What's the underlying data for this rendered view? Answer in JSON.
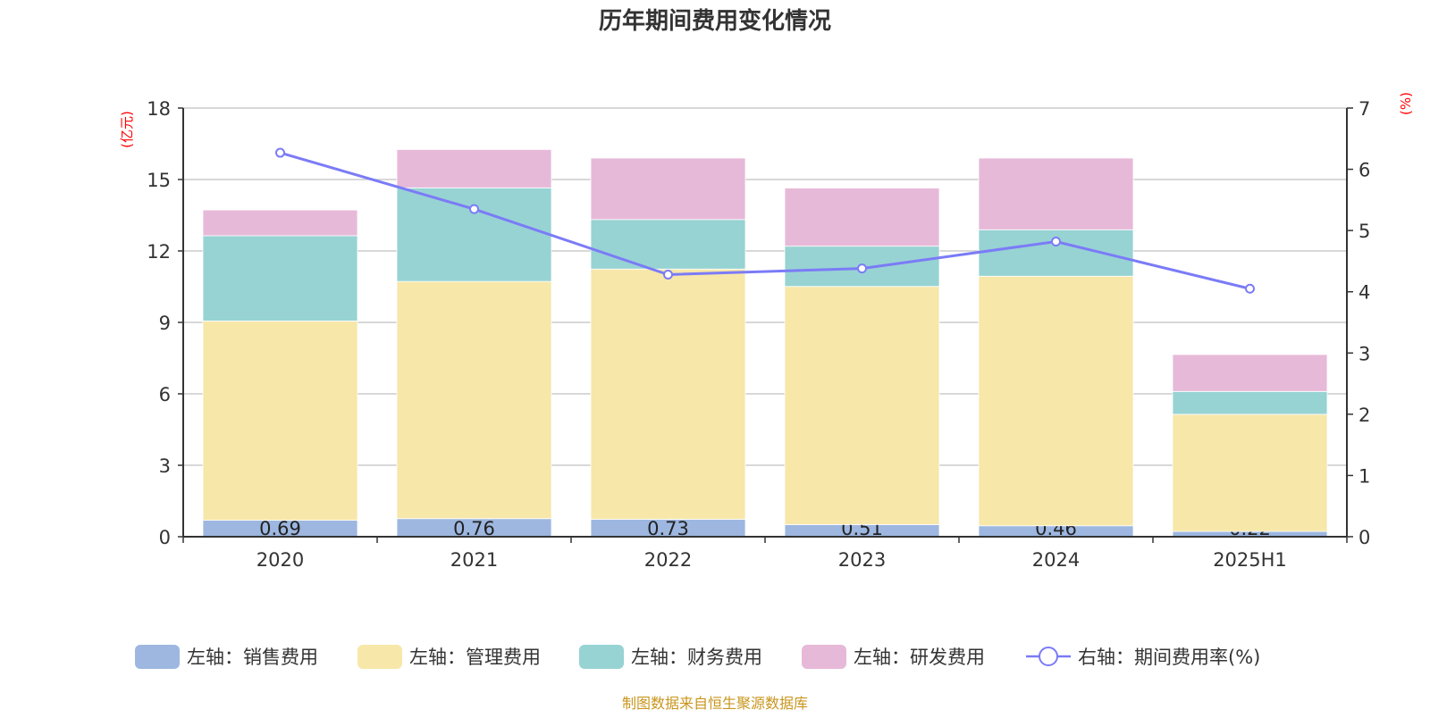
{
  "chart_data": {
    "type": "bar",
    "stacked": true,
    "title": "历年期间费用变化情况",
    "categories": [
      "2020",
      "2021",
      "2022",
      "2023",
      "2024",
      "2025H1"
    ],
    "left_axis": {
      "label": "(亿元)",
      "range": [
        0,
        18
      ],
      "ticks": [
        0,
        3,
        6,
        9,
        12,
        15,
        18
      ]
    },
    "right_axis": {
      "label": "(%)",
      "range": [
        0,
        7
      ],
      "ticks": [
        0,
        1,
        2,
        3,
        4,
        5,
        6,
        7
      ]
    },
    "grid": true,
    "legend_position": "bottom",
    "series": [
      {
        "name": "左轴：销售费用",
        "axis": "left",
        "type": "bar",
        "color": "#9db7e0",
        "values": [
          0.69,
          0.76,
          0.73,
          0.51,
          0.46,
          0.22
        ],
        "labels": [
          "0.69",
          "0.76",
          "0.73",
          "0.51",
          "0.46",
          "0.22"
        ]
      },
      {
        "name": "左轴：管理费用",
        "axis": "left",
        "type": "bar",
        "color": "#f7e7a9",
        "values": [
          8.37,
          9.96,
          10.51,
          10.0,
          10.48,
          4.92
        ]
      },
      {
        "name": "左轴：财务费用",
        "axis": "left",
        "type": "bar",
        "color": "#97d3d3",
        "values": [
          3.58,
          3.93,
          2.08,
          1.69,
          1.95,
          0.96
        ]
      },
      {
        "name": "左轴：研发费用",
        "axis": "left",
        "type": "bar",
        "color": "#e7b9d8",
        "values": [
          1.08,
          1.61,
          2.58,
          2.44,
          3.01,
          1.55
        ]
      },
      {
        "name": "右轴：期间费用率(%)",
        "axis": "right",
        "type": "line",
        "color": "#7b7bf7",
        "values": [
          6.27,
          5.35,
          4.28,
          4.38,
          4.82,
          4.05
        ]
      }
    ],
    "axis_label_color": "#ff0000"
  },
  "footer": {
    "source": "制图数据来自恒生聚源数据库",
    "color": "#c8961e"
  }
}
